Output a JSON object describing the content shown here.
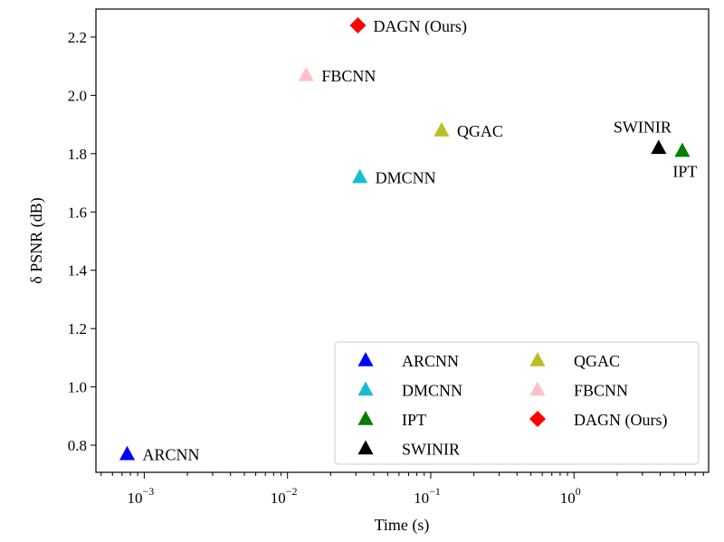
{
  "chart_data": {
    "type": "scatter",
    "title": "",
    "xlabel": "Time (s)",
    "ylabel": "δ PSNR (dB)",
    "xscale": "log",
    "xlim": [
      0.00046,
      8.7
    ],
    "ylim": [
      0.707,
      2.296
    ],
    "xticks": [
      {
        "value": 0.001,
        "base": "10",
        "exp": "−3"
      },
      {
        "value": 0.01,
        "base": "10",
        "exp": "−2"
      },
      {
        "value": 0.1,
        "base": "10",
        "exp": "−1"
      },
      {
        "value": 1,
        "base": "10",
        "exp": "0"
      }
    ],
    "yticks": [
      "0.8",
      "1.0",
      "1.2",
      "1.4",
      "1.6",
      "1.8",
      "2.0",
      "2.2"
    ],
    "grid": false,
    "legend_position": "bottom-right",
    "points": [
      {
        "name": "ARCNN",
        "x": 0.00076,
        "y": 0.77,
        "marker": "triangle",
        "color": "#0000ff",
        "label_side": "right"
      },
      {
        "name": "DMCNN",
        "x": 0.032,
        "y": 1.72,
        "marker": "triangle",
        "color": "#17becf",
        "label_side": "right"
      },
      {
        "name": "IPT",
        "x": 5.7,
        "y": 1.81,
        "marker": "triangle",
        "color": "#007f00",
        "label_side": "below"
      },
      {
        "name": "SWINIR",
        "x": 3.9,
        "y": 1.82,
        "marker": "triangle",
        "color": "#000000",
        "label_side": "above-left"
      },
      {
        "name": "QGAC",
        "x": 0.119,
        "y": 1.88,
        "marker": "triangle",
        "color": "#bcbd22",
        "label_side": "right"
      },
      {
        "name": "FBCNN",
        "x": 0.0135,
        "y": 2.07,
        "marker": "triangle",
        "color": "#ffc0cb",
        "label_side": "right"
      },
      {
        "name": "DAGN (Ours)",
        "x": 0.031,
        "y": 2.24,
        "marker": "diamond",
        "color": "#ff0000",
        "label_side": "right"
      }
    ],
    "legend": [
      [
        "ARCNN",
        "DMCNN",
        "IPT",
        "SWINIR"
      ],
      [
        "QGAC",
        "FBCNN",
        "DAGN (Ours)"
      ]
    ]
  }
}
